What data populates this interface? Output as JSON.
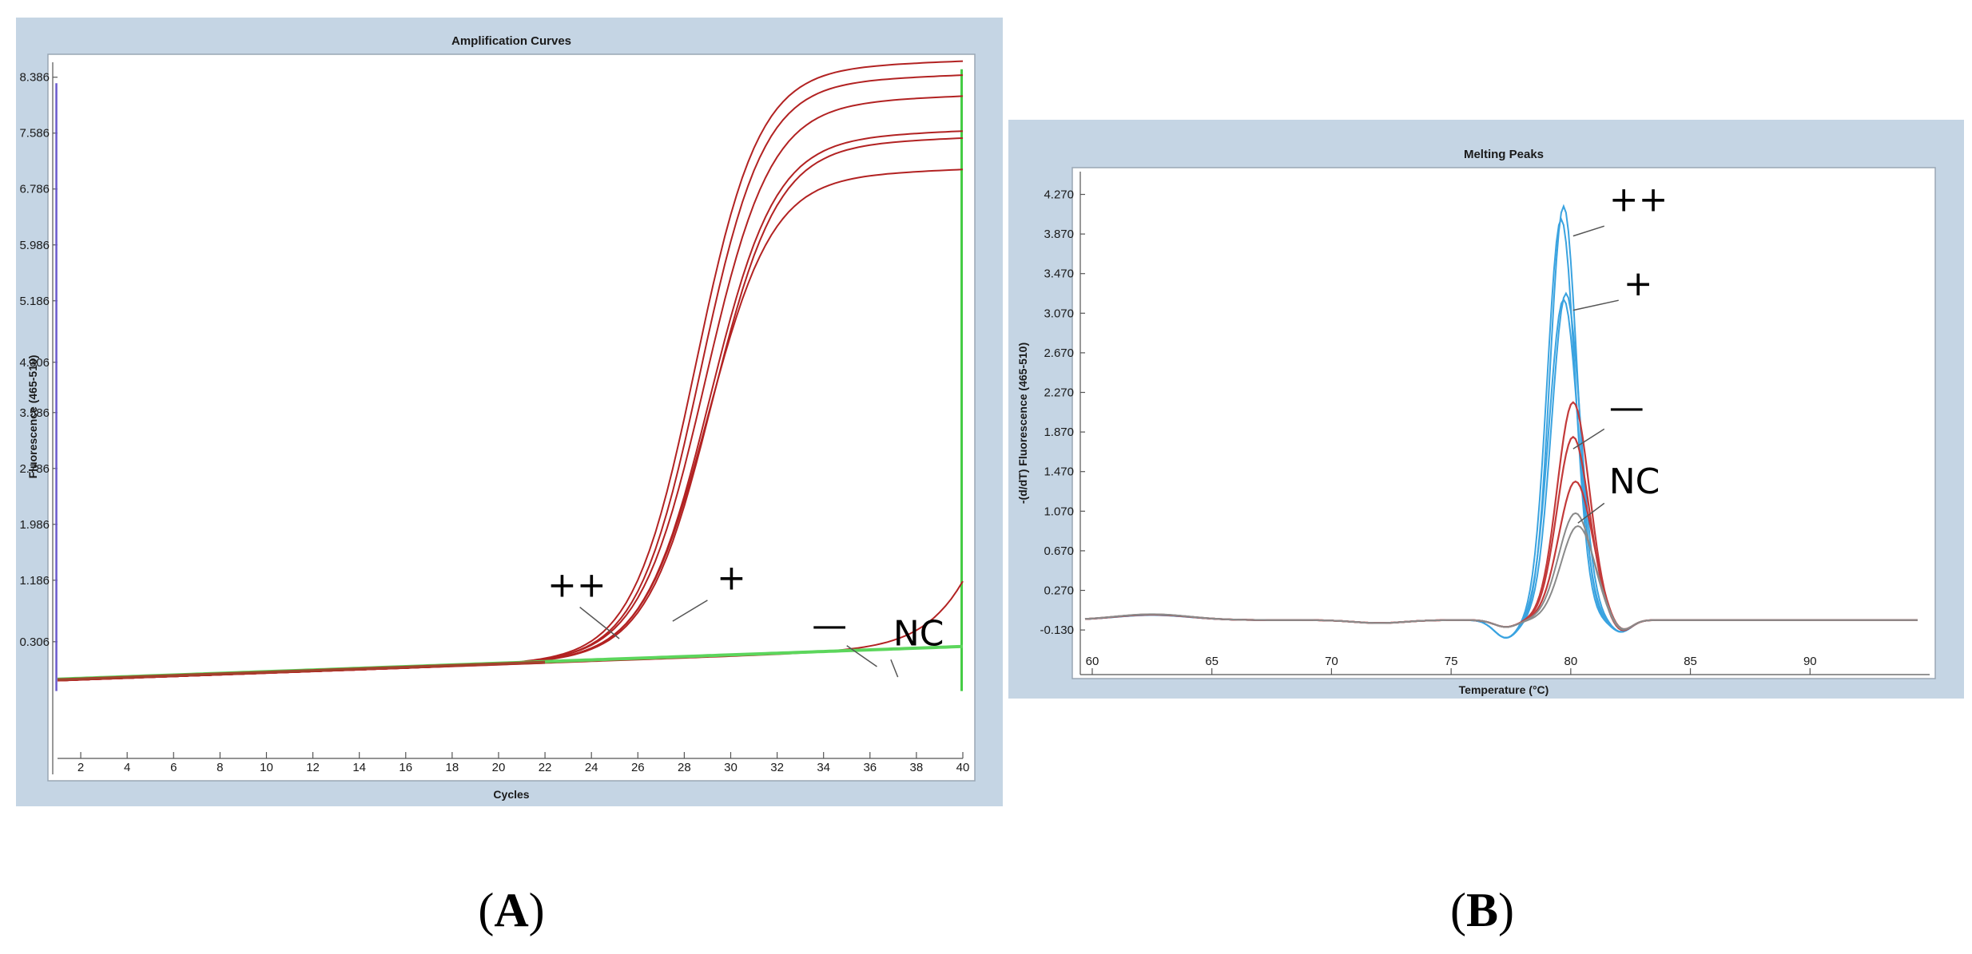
{
  "panel_labels": {
    "a": "A",
    "b": "B"
  },
  "colors": {
    "amp_curve": "#b22222",
    "amp_baseline": "#5cd65c",
    "amp_left_line": "#6a5acd",
    "amp_right_line": "#44cc44",
    "melt_blue": "#3aa3e0",
    "melt_red": "#c33a3a",
    "melt_gray": "#8a8a8a"
  },
  "chart_data": [
    {
      "type": "line",
      "title": "Amplification Curves",
      "xlabel": "Cycles",
      "ylabel": "Fluorescence (465-510)",
      "xlim": [
        1,
        40
      ],
      "ylim": [
        -1.25,
        8.6
      ],
      "xticks": [
        "2",
        "4",
        "6",
        "8",
        "10",
        "12",
        "14",
        "16",
        "18",
        "20",
        "22",
        "24",
        "26",
        "28",
        "30",
        "32",
        "34",
        "36",
        "38",
        "40"
      ],
      "yticks": [
        "0.306",
        "1.186",
        "1.986",
        "2.786",
        "3.586",
        "4.306",
        "5.186",
        "5.986",
        "6.786",
        "7.586",
        "8.386"
      ],
      "series": [
        {
          "name": "++ a",
          "kind": "sigmoid",
          "plateau": 8.4,
          "midpoint": 28.5,
          "slope": 1.35
        },
        {
          "name": "++ b",
          "kind": "sigmoid",
          "plateau": 8.2,
          "midpoint": 28.7,
          "slope": 1.35
        },
        {
          "name": "+ a",
          "kind": "sigmoid",
          "plateau": 7.9,
          "midpoint": 28.9,
          "slope": 1.4
        },
        {
          "name": "+ b",
          "kind": "sigmoid",
          "plateau": 7.4,
          "midpoint": 29.1,
          "slope": 1.4
        },
        {
          "name": "+ c",
          "kind": "sigmoid",
          "plateau": 7.3,
          "midpoint": 29.2,
          "slope": 1.4
        },
        {
          "name": "+ d",
          "kind": "sigmoid",
          "plateau": 6.85,
          "midpoint": 29.0,
          "slope": 1.4
        },
        {
          "name": "-",
          "kind": "sigmoid",
          "plateau": 8.0,
          "midpoint": 43.0,
          "slope": 1.5
        },
        {
          "name": "NC",
          "kind": "flat",
          "value": 0.0
        }
      ],
      "annotations": [
        {
          "text": "++",
          "x": 22.1,
          "y": 0.95
        },
        {
          "text": "+",
          "x": 29.4,
          "y": 1.05
        },
        {
          "text": "—",
          "x": 33.5,
          "y": 0.37
        },
        {
          "text": "NC",
          "x": 37.0,
          "y": 0.25
        }
      ]
    },
    {
      "type": "line",
      "title": "Melting Peaks",
      "xlabel": "Temperature (°C)",
      "ylabel": "-(d/dT) Fluorescence (465-510)",
      "xlim": [
        59.5,
        95
      ],
      "ylim": [
        -0.5,
        4.5
      ],
      "xticks": [
        "60",
        "65",
        "70",
        "75",
        "80",
        "85",
        "90"
      ],
      "yticks": [
        "-0.130",
        "0.270",
        "0.670",
        "1.070",
        "1.470",
        "1.870",
        "2.270",
        "2.670",
        "3.070",
        "3.470",
        "3.870",
        "4.270"
      ],
      "series": [
        {
          "name": "++ a",
          "color": "blue",
          "peak": 4.18,
          "center": 79.7,
          "width": 0.8
        },
        {
          "name": "++ b",
          "color": "blue",
          "peak": 4.05,
          "center": 79.6,
          "width": 0.82
        },
        {
          "name": "+ a",
          "color": "blue",
          "peak": 3.3,
          "center": 79.8,
          "width": 0.85
        },
        {
          "name": "+ b",
          "color": "blue",
          "peak": 3.24,
          "center": 79.7,
          "width": 0.86
        },
        {
          "name": "- a",
          "color": "red",
          "peak": 2.2,
          "center": 80.1,
          "width": 0.95
        },
        {
          "name": "- b",
          "color": "red",
          "peak": 1.85,
          "center": 80.1,
          "width": 0.95
        },
        {
          "name": "NC a",
          "color": "red",
          "peak": 1.4,
          "center": 80.2,
          "width": 1.0
        },
        {
          "name": "NC b",
          "color": "gray",
          "peak": 1.08,
          "center": 80.2,
          "width": 1.0
        },
        {
          "name": "NC c",
          "color": "gray",
          "peak": 0.95,
          "center": 80.3,
          "width": 1.0
        }
      ],
      "annotations": [
        {
          "text": "++",
          "x": 81.6,
          "y": 4.1
        },
        {
          "text": "+",
          "x": 82.2,
          "y": 3.25
        },
        {
          "text": "—",
          "x": 81.6,
          "y": 2.0
        },
        {
          "text": "NC",
          "x": 81.6,
          "y": 1.25
        }
      ]
    }
  ]
}
